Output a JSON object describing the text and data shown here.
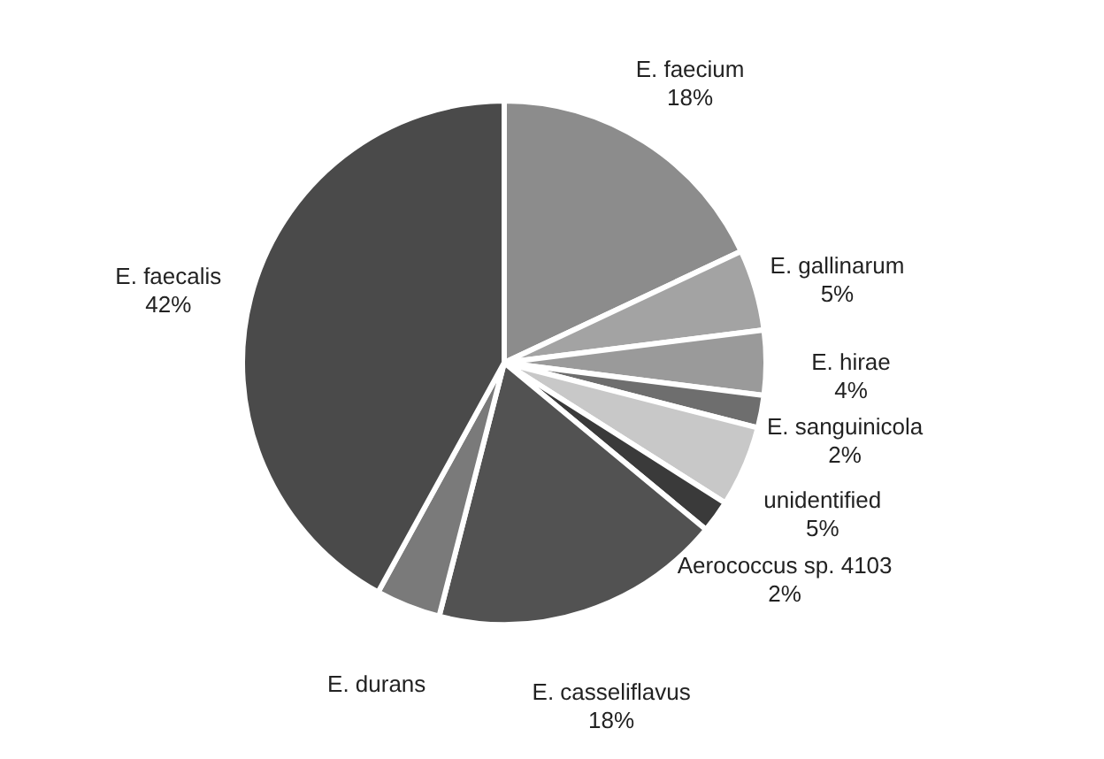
{
  "chart_data": {
    "type": "pie",
    "categories": [
      "E. faecium",
      "E. gallinarum",
      "E. hirae",
      "E. sanguinicola",
      "unidentified",
      "Aerococcus sp. 4103",
      "E. casseliflavus",
      "E. durans",
      "E. faecalis"
    ],
    "values": [
      18,
      5,
      4,
      2,
      5,
      2,
      18,
      4,
      42
    ],
    "value_labels": [
      "18%",
      "5%",
      "4%",
      "2%",
      "5%",
      "2%",
      "18%",
      null,
      "42%"
    ],
    "colors": [
      "#8c8c8c",
      "#a3a3a3",
      "#9a9a9a",
      "#6e6e6e",
      "#c8c8c8",
      "#3a3a3a",
      "#525252",
      "#7a7a7a",
      "#4a4a4a"
    ]
  }
}
